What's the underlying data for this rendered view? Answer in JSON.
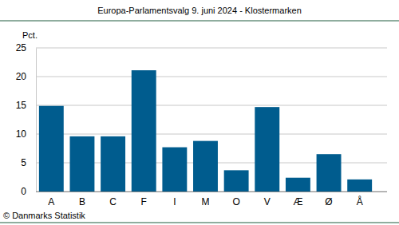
{
  "chart_data": {
    "type": "bar",
    "title": "Europa-Parlamentsvalg 9. juni 2024 - Klostermarken",
    "ylabel": "Pct.",
    "annotations": [
      "© Danmarks Statistik"
    ],
    "categories": [
      "A",
      "B",
      "C",
      "F",
      "I",
      "M",
      "O",
      "V",
      "Æ",
      "Ø",
      "Å"
    ],
    "values": [
      14.9,
      9.6,
      9.6,
      21.1,
      7.7,
      8.8,
      3.7,
      14.7,
      2.4,
      6.5,
      2.1
    ],
    "color": "#005c8e",
    "ylim": [
      0,
      25
    ],
    "yticks": [
      0,
      5,
      10,
      15,
      20,
      25
    ],
    "grid": true
  }
}
